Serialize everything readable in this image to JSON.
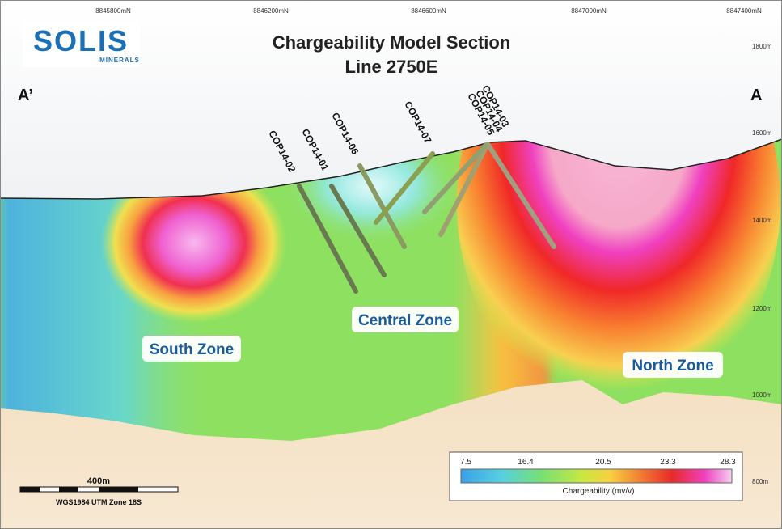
{
  "header": {
    "title_line1": "Chargeability Model Section",
    "title_line2": "Line 2750E"
  },
  "logo": {
    "name": "SOLIS",
    "sub": "MINERALS"
  },
  "section_ends": [
    "A’",
    "A"
  ],
  "northings": [
    "8845800mN",
    "8846200mN",
    "8846600mN",
    "8847000mN",
    "8847400mN"
  ],
  "elevations": [
    "1800m",
    "1600m",
    "1400m",
    "1200m",
    "1000m",
    "800m"
  ],
  "drill_holes": [
    "COP14-02",
    "COP14-01",
    "COP14-06",
    "COP14-07",
    "COP14-03",
    "COP14-04",
    "COP14-05"
  ],
  "zones": [
    "South Zone",
    "Central Zone",
    "North Zone"
  ],
  "legend": {
    "ticks": [
      "7.5",
      "16.4",
      "20.5",
      "23.3",
      "28.3"
    ],
    "label": "Chargeability (mv/v)"
  },
  "scale_bar": {
    "length": "400m",
    "projection": "WGS1984 UTM Zone 18S"
  }
}
